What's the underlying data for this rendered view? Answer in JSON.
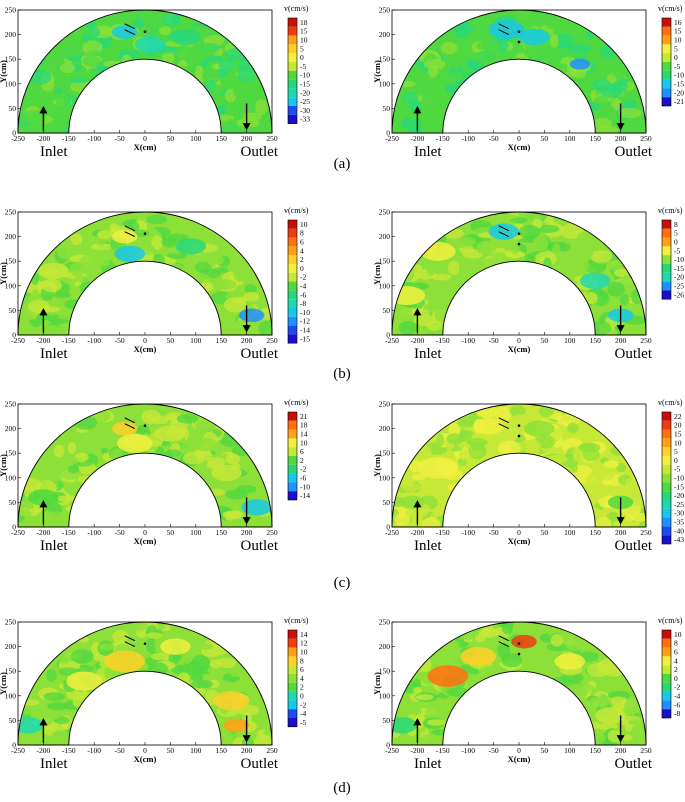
{
  "figure": {
    "rows": [
      {
        "label": "(a)"
      },
      {
        "label": "(b)"
      },
      {
        "label": "(c)"
      },
      {
        "label": "(d)"
      }
    ]
  },
  "chart_data": [
    {
      "type": "heatmap",
      "xlabel": "X(cm)",
      "ylabel": "Y(cm)",
      "x_ticks": [
        -250,
        -200,
        -150,
        -100,
        -50,
        0,
        50,
        100,
        150,
        200,
        250
      ],
      "y_ticks": [
        0,
        50,
        100,
        150,
        200,
        250
      ],
      "colorbar_title": "v(cm/s)",
      "colorbar_labels": [
        "18",
        "15",
        "10",
        "5",
        "0",
        "-5",
        "-10",
        "-15",
        "-20",
        "-25",
        "-30",
        "-33"
      ],
      "dominant_value": "-5",
      "annotations": [
        "Inlet",
        "Outlet"
      ]
    },
    {
      "type": "heatmap",
      "xlabel": "X(cm)",
      "ylabel": "Y(cm)",
      "x_ticks": [
        -250,
        -200,
        -150,
        -100,
        -50,
        0,
        50,
        100,
        150,
        200,
        250
      ],
      "y_ticks": [
        0,
        50,
        100,
        150,
        200,
        250
      ],
      "colorbar_title": "v(cm/s)",
      "colorbar_labels": [
        "16",
        "15",
        "10",
        "5",
        "0",
        "-5",
        "-10",
        "-15",
        "-20",
        "-21"
      ],
      "dominant_value": "-5",
      "annotations": [
        "Inlet",
        "Outlet"
      ]
    },
    {
      "type": "heatmap",
      "xlabel": "X(cm)",
      "ylabel": "Y(cm)",
      "x_ticks": [
        -250,
        -200,
        -150,
        -100,
        -50,
        0,
        50,
        100,
        150,
        200,
        250
      ],
      "y_ticks": [
        0,
        50,
        100,
        150,
        200,
        250
      ],
      "colorbar_title": "v(cm/s)",
      "colorbar_labels": [
        "10",
        "8",
        "6",
        "4",
        "2",
        "0",
        "-2",
        "-4",
        "-6",
        "-8",
        "-10",
        "-12",
        "-14",
        "-15"
      ],
      "dominant_value": "0",
      "annotations": [
        "Inlet",
        "Outlet"
      ]
    },
    {
      "type": "heatmap",
      "xlabel": "X(cm)",
      "ylabel": "Y(cm)",
      "x_ticks": [
        -250,
        -200,
        -150,
        -100,
        -50,
        0,
        50,
        100,
        150,
        200,
        250
      ],
      "y_ticks": [
        0,
        50,
        100,
        150,
        200,
        250
      ],
      "colorbar_title": "v(cm/s)",
      "colorbar_labels": [
        "8",
        "5",
        "0",
        "-5",
        "-10",
        "-15",
        "-20",
        "-25",
        "-26"
      ],
      "dominant_value": "-5",
      "annotations": [
        "Inlet",
        "Outlet"
      ]
    },
    {
      "type": "heatmap",
      "xlabel": "X(cm)",
      "ylabel": "Y(cm)",
      "x_ticks": [
        -250,
        -200,
        -150,
        -100,
        -50,
        0,
        50,
        100,
        150,
        200,
        250
      ],
      "y_ticks": [
        0,
        50,
        100,
        150,
        200,
        250
      ],
      "colorbar_title": "v(cm/s)",
      "colorbar_labels": [
        "21",
        "18",
        "14",
        "10",
        "6",
        "2",
        "-2",
        "-6",
        "-10",
        "-14"
      ],
      "dominant_value": "2",
      "annotations": [
        "Inlet",
        "Outlet"
      ]
    },
    {
      "type": "heatmap",
      "xlabel": "X(cm)",
      "ylabel": "Y(cm)",
      "x_ticks": [
        -250,
        -200,
        -150,
        -100,
        -50,
        0,
        50,
        100,
        150,
        200,
        250
      ],
      "y_ticks": [
        0,
        50,
        100,
        150,
        200,
        250
      ],
      "colorbar_title": "v(cm/s)",
      "colorbar_labels": [
        "22",
        "20",
        "15",
        "10",
        "5",
        "0",
        "-5",
        "-10",
        "-15",
        "-20",
        "-25",
        "-30",
        "-35",
        "-40",
        "-43"
      ],
      "dominant_value": "0",
      "annotations": [
        "Inlet",
        "Outlet"
      ]
    },
    {
      "type": "heatmap",
      "xlabel": "X(cm)",
      "ylabel": "Y(cm)",
      "x_ticks": [
        -250,
        -200,
        -150,
        -100,
        -50,
        0,
        50,
        100,
        150,
        200,
        250
      ],
      "y_ticks": [
        0,
        50,
        100,
        150,
        200,
        250
      ],
      "colorbar_title": "v(cm/s)",
      "colorbar_labels": [
        "14",
        "12",
        "10",
        "8",
        "6",
        "4",
        "2",
        "0",
        "-2",
        "-4",
        "-5"
      ],
      "dominant_value": "6",
      "annotations": [
        "Inlet",
        "Outlet"
      ]
    },
    {
      "type": "heatmap",
      "xlabel": "X(cm)",
      "ylabel": "Y(cm)",
      "x_ticks": [
        -250,
        -200,
        -150,
        -100,
        -50,
        0,
        50,
        100,
        150,
        200,
        250
      ],
      "y_ticks": [
        0,
        50,
        100,
        150,
        200,
        250
      ],
      "colorbar_title": "v(cm/s)",
      "colorbar_labels": [
        "10",
        "8",
        "6",
        "4",
        "2",
        "0",
        "-2",
        "-4",
        "-6",
        "-8"
      ],
      "dominant_value": "2",
      "annotations": [
        "Inlet",
        "Outlet"
      ]
    }
  ],
  "colors": {
    "palette": [
      "#1a10c8",
      "#1c4cf0",
      "#1e90ff",
      "#18c8e8",
      "#20d8b0",
      "#28d878",
      "#50d840",
      "#8ce038",
      "#c8e838",
      "#f0f040",
      "#ffd028",
      "#ffa018",
      "#ff7010",
      "#f03c10",
      "#c81008"
    ]
  }
}
